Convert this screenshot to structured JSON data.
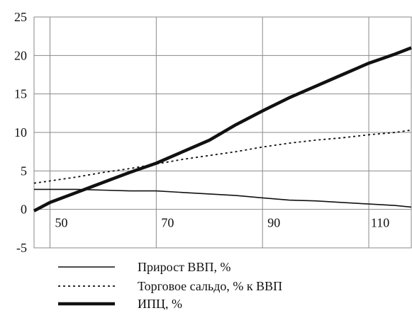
{
  "chart_data": {
    "type": "line",
    "title": "",
    "xlabel": "",
    "ylabel": "",
    "xlim": [
      47,
      118
    ],
    "ylim": [
      -5,
      25
    ],
    "grid": true,
    "legend_placement": "bottom",
    "x_ticks": [
      50,
      70,
      90,
      110
    ],
    "x_tick_labels": [
      "50",
      "70",
      "90",
      "110"
    ],
    "y_ticks": [
      25,
      20,
      15,
      10,
      5,
      0,
      -5
    ],
    "y_tick_labels": [
      "25",
      "20",
      "15",
      "10",
      "5",
      "0",
      "-5"
    ],
    "series": [
      {
        "name": "Прирост ВВП, %",
        "style": "thin",
        "color": "#111111",
        "x": [
          47,
          55,
          60,
          65,
          70,
          75,
          80,
          85,
          90,
          95,
          100,
          105,
          110,
          115,
          118
        ],
        "y": [
          2.6,
          2.6,
          2.5,
          2.4,
          2.4,
          2.2,
          2.0,
          1.8,
          1.5,
          1.2,
          1.1,
          0.9,
          0.7,
          0.5,
          0.3
        ]
      },
      {
        "name": "Торговое сальдо, % к ВВП",
        "style": "dotted",
        "color": "#111111",
        "x": [
          47,
          50,
          55,
          60,
          65,
          70,
          75,
          80,
          85,
          90,
          95,
          100,
          105,
          110,
          115,
          118
        ],
        "y": [
          3.4,
          3.7,
          4.2,
          4.8,
          5.3,
          5.9,
          6.5,
          7.0,
          7.5,
          8.1,
          8.6,
          9.0,
          9.3,
          9.7,
          10.0,
          10.3
        ]
      },
      {
        "name": "ИПЦ, %",
        "style": "thick",
        "color": "#111111",
        "x": [
          47,
          50,
          55,
          60,
          65,
          70,
          75,
          80,
          85,
          90,
          95,
          100,
          105,
          110,
          115,
          118
        ],
        "y": [
          -0.2,
          0.9,
          2.2,
          3.5,
          4.8,
          6.0,
          7.5,
          9.0,
          11.0,
          12.8,
          14.5,
          16.0,
          17.5,
          19.0,
          20.2,
          21.0
        ]
      }
    ]
  }
}
